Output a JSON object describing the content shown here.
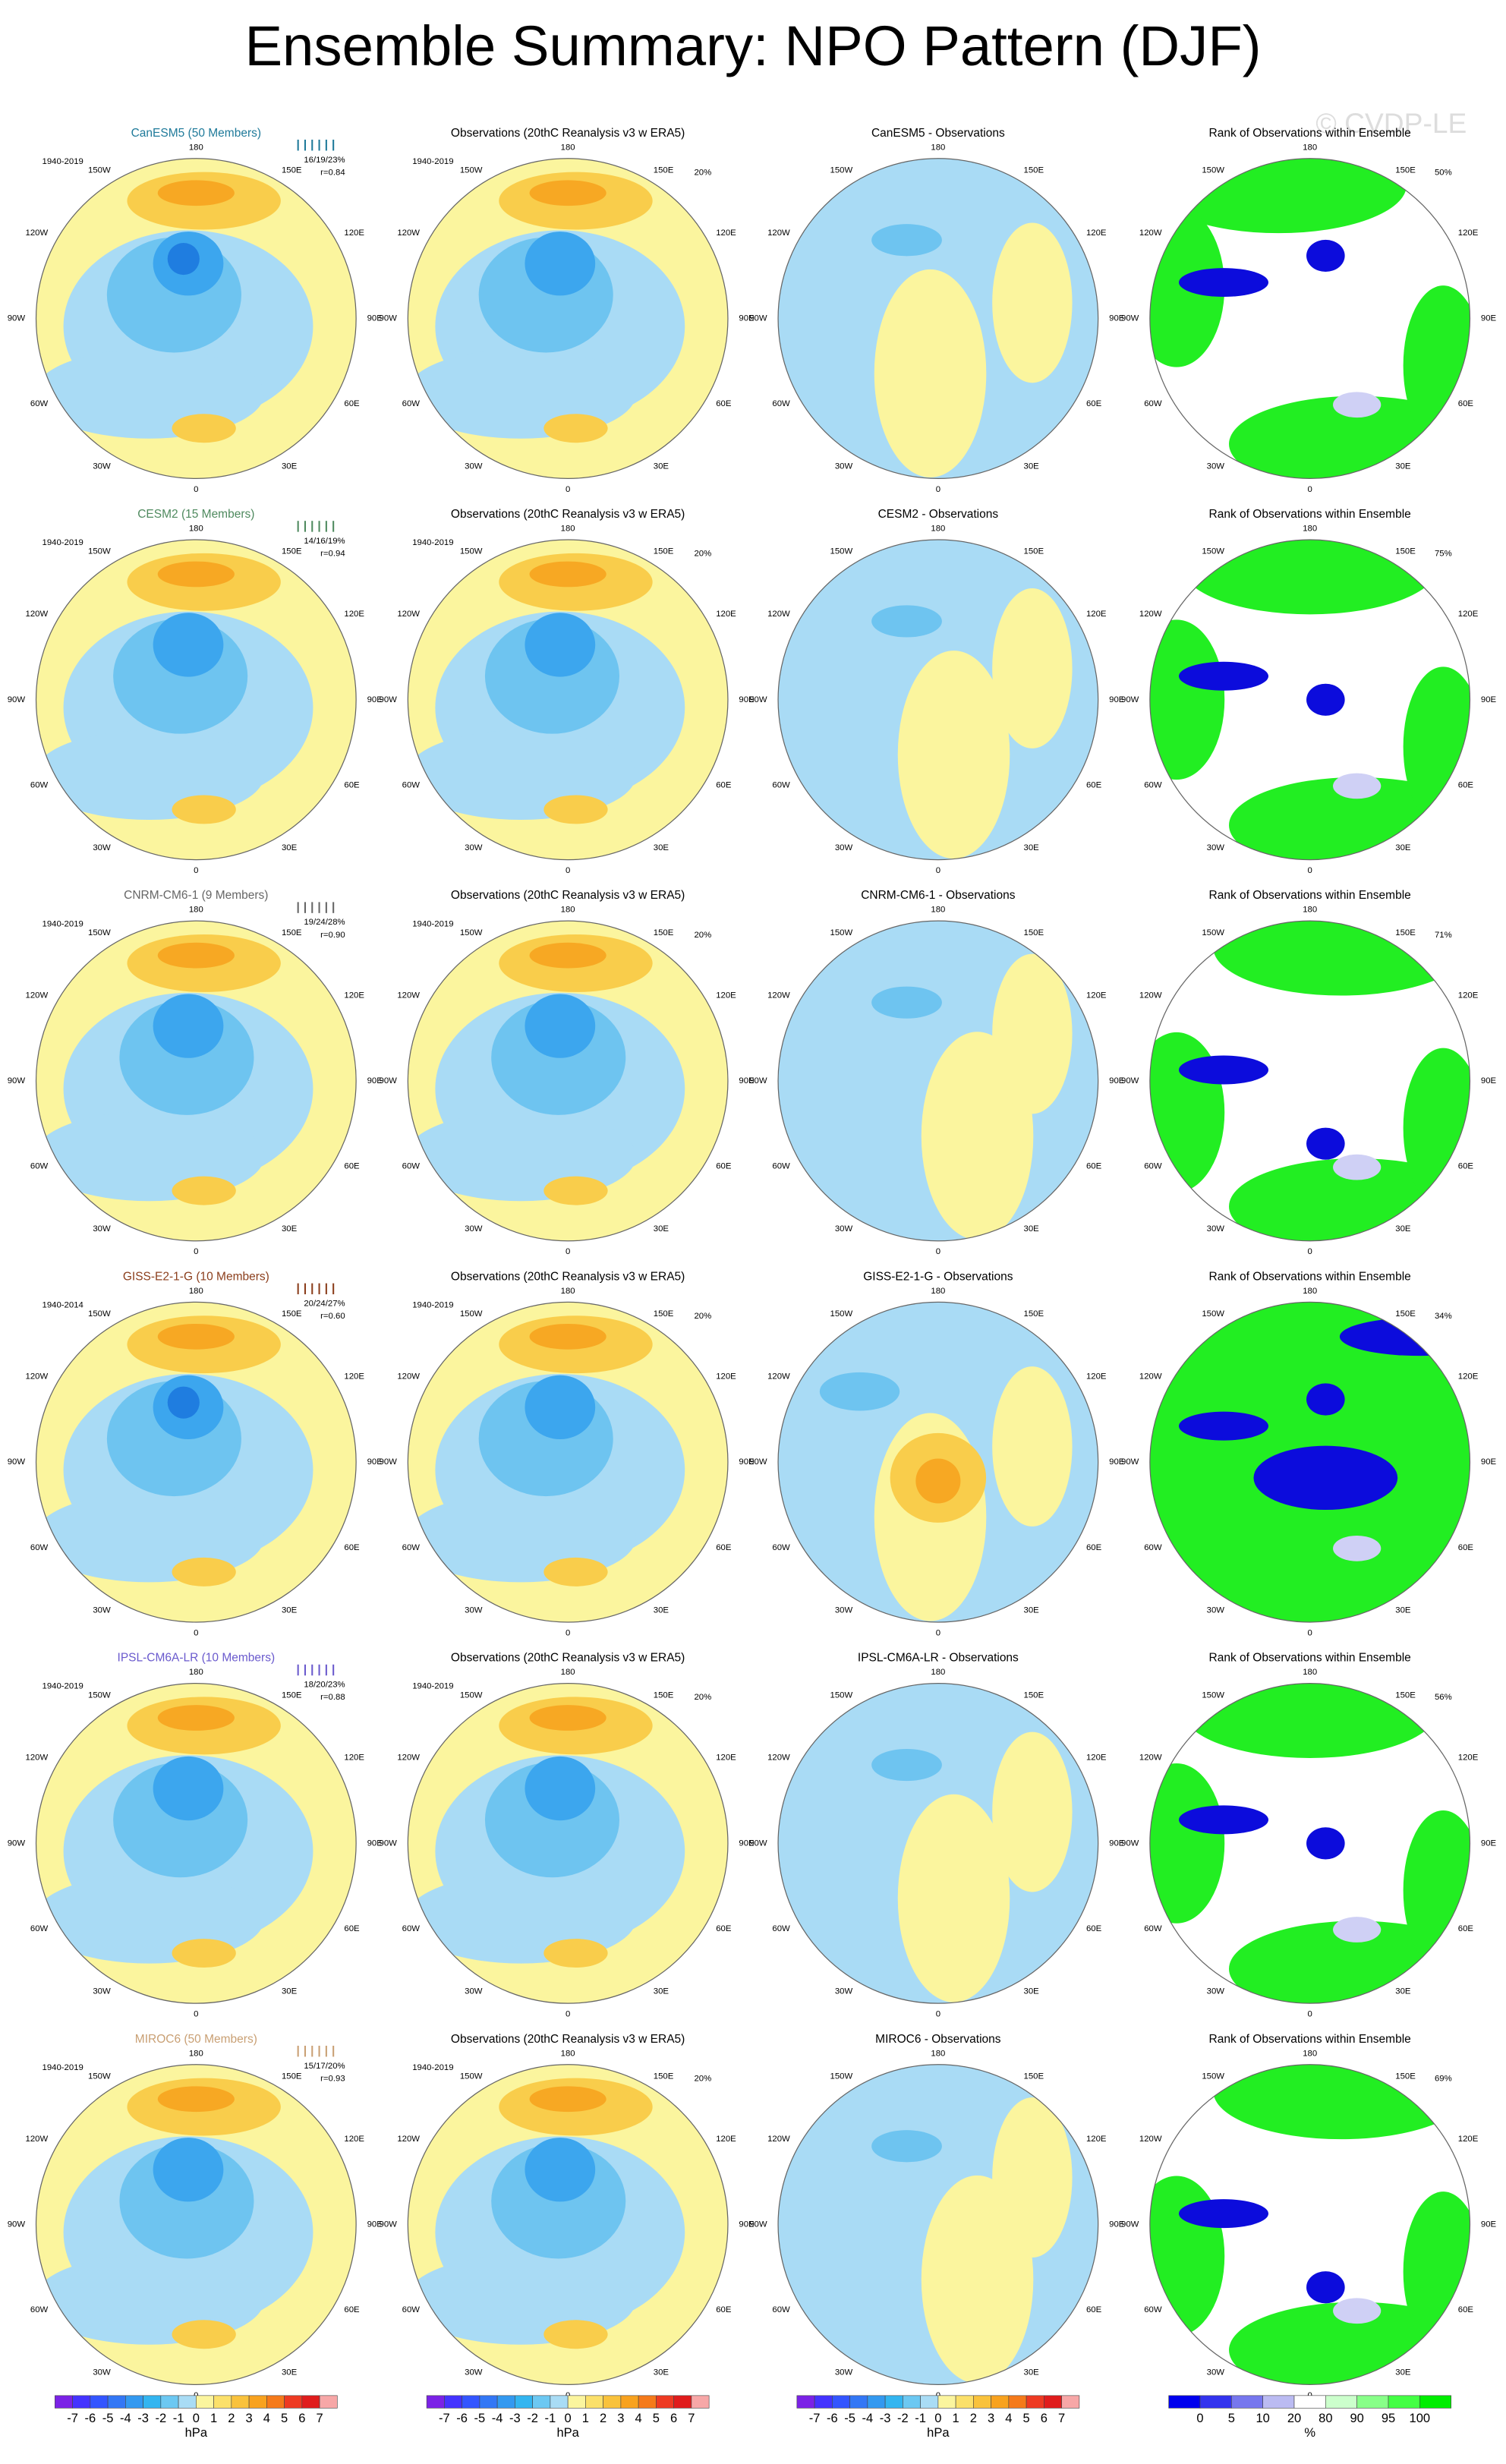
{
  "title": "Ensemble Summary: NPO Pattern (DJF)",
  "watermark": "© CVDP-LE",
  "lon_labels": [
    "180",
    "150W",
    "150E",
    "120W",
    "120E",
    "90W",
    "90E",
    "60W",
    "60E",
    "30W",
    "30E",
    "0"
  ],
  "obs_title": "Observations (20thC Reanalysis v3 w ERA5)",
  "obs_period": "1940-2019",
  "obs_pct": "20%",
  "rank_title": "Rank of Observations within Ensemble",
  "rows": [
    {
      "model": "CanESM5 (50 Members)",
      "color": "#1f7a9a",
      "period": "1940-2019",
      "stats": "16/19/23%",
      "r": "r=0.84",
      "diff_title": "CanESM5 - Observations",
      "rank_pct": "50%"
    },
    {
      "model": "CESM2 (15 Members)",
      "color": "#4f8a5f",
      "period": "1940-2019",
      "stats": "14/16/19%",
      "r": "r=0.94",
      "diff_title": "CESM2 - Observations",
      "rank_pct": "75%"
    },
    {
      "model": "CNRM-CM6-1 (9 Members)",
      "color": "#666666",
      "period": "1940-2019",
      "stats": "19/24/28%",
      "r": "r=0.90",
      "diff_title": "CNRM-CM6-1 - Observations",
      "rank_pct": "71%"
    },
    {
      "model": "GISS-E2-1-G (10 Members)",
      "color": "#8b3e1c",
      "period": "1940-2014",
      "stats": "20/24/27%",
      "r": "r=0.60",
      "diff_title": "GISS-E2-1-G - Observations",
      "rank_pct": "34%"
    },
    {
      "model": "IPSL-CM6A-LR (10 Members)",
      "color": "#6a5acd",
      "period": "1940-2019",
      "stats": "18/20/23%",
      "r": "r=0.88",
      "diff_title": "IPSL-CM6A-LR - Observations",
      "rank_pct": "56%"
    },
    {
      "model": "MIROC6 (50 Members)",
      "color": "#c9a074",
      "period": "1940-2019",
      "stats": "15/17/20%",
      "r": "r=0.93",
      "diff_title": "MIROC6 - Observations",
      "rank_pct": "69%"
    }
  ],
  "colorbars": {
    "hpa": {
      "ticks": [
        -7,
        -6,
        -5,
        -4,
        -3,
        -2,
        -1,
        0,
        1,
        2,
        3,
        4,
        5,
        6,
        7
      ],
      "units": "hPa"
    },
    "rank": {
      "ticks": [
        0,
        5,
        10,
        20,
        80,
        90,
        95,
        100
      ],
      "units": "%"
    }
  }
}
